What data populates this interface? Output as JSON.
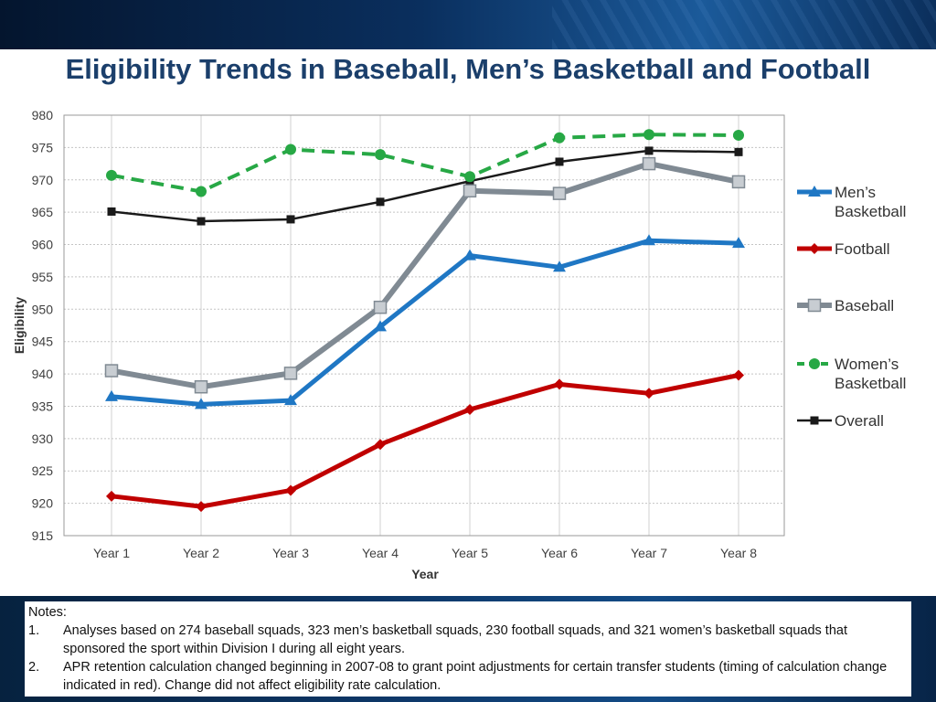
{
  "slide": {
    "title": "Eligibility Trends in Baseball, Men’s Basketball and Football"
  },
  "notes": {
    "heading": "Notes:",
    "items": [
      {
        "num": "1.",
        "text": "Analyses based on 274 baseball squads, 323 men’s basketball squads, 230 football squads, and 321 women’s basketball squads that sponsored the sport within Division I during all eight years."
      },
      {
        "num": "2.",
        "text": "APR retention calculation changed  beginning in 2007-08 to grant point adjustments for certain transfer students (timing of calculation change indicated in red). Change did not affect eligibility rate calculation."
      }
    ]
  },
  "chart_data": {
    "type": "line",
    "xlabel": "Year",
    "ylabel": "Eligibility",
    "categories": [
      "Year 1",
      "Year 2",
      "Year 3",
      "Year 4",
      "Year 5",
      "Year 6",
      "Year 7",
      "Year 8"
    ],
    "ylim": [
      915,
      980
    ],
    "yticks": [
      915,
      920,
      925,
      930,
      935,
      940,
      945,
      950,
      955,
      960,
      965,
      970,
      975,
      980
    ],
    "grid": true,
    "legend_position": "right",
    "series": [
      {
        "name": "Men’s Basketball",
        "legend_lines": [
          "Men’s",
          "Basketball"
        ],
        "color": "#1f77c4",
        "marker": "triangle",
        "dash": "solid",
        "values": [
          936.5,
          935.3,
          935.9,
          947.3,
          958.3,
          956.5,
          960.6,
          960.2
        ]
      },
      {
        "name": "Football",
        "legend_lines": [
          "Football"
        ],
        "color": "#c00000",
        "marker": "diamond",
        "dash": "solid",
        "values": [
          921.1,
          919.5,
          922.0,
          929.1,
          934.5,
          938.4,
          937.0,
          939.8
        ]
      },
      {
        "name": "Baseball",
        "legend_lines": [
          "Baseball"
        ],
        "color": "#808a93",
        "marker": "square",
        "dash": "solid",
        "values": [
          940.5,
          938.0,
          940.1,
          950.3,
          968.3,
          967.9,
          972.5,
          969.7
        ]
      },
      {
        "name": "Women’s Basketball",
        "legend_lines": [
          "Women’s",
          "Basketball"
        ],
        "color": "#27a845",
        "marker": "circle",
        "dash": "dashed",
        "values": [
          970.7,
          968.2,
          974.7,
          973.9,
          970.5,
          976.5,
          977.0,
          976.9
        ]
      },
      {
        "name": "Overall",
        "legend_lines": [
          "Overall"
        ],
        "color": "#1a1a1a",
        "marker": "smallsquare",
        "dash": "solid",
        "values": [
          965.1,
          963.6,
          963.9,
          966.6,
          969.8,
          972.8,
          974.5,
          974.3
        ]
      }
    ]
  }
}
